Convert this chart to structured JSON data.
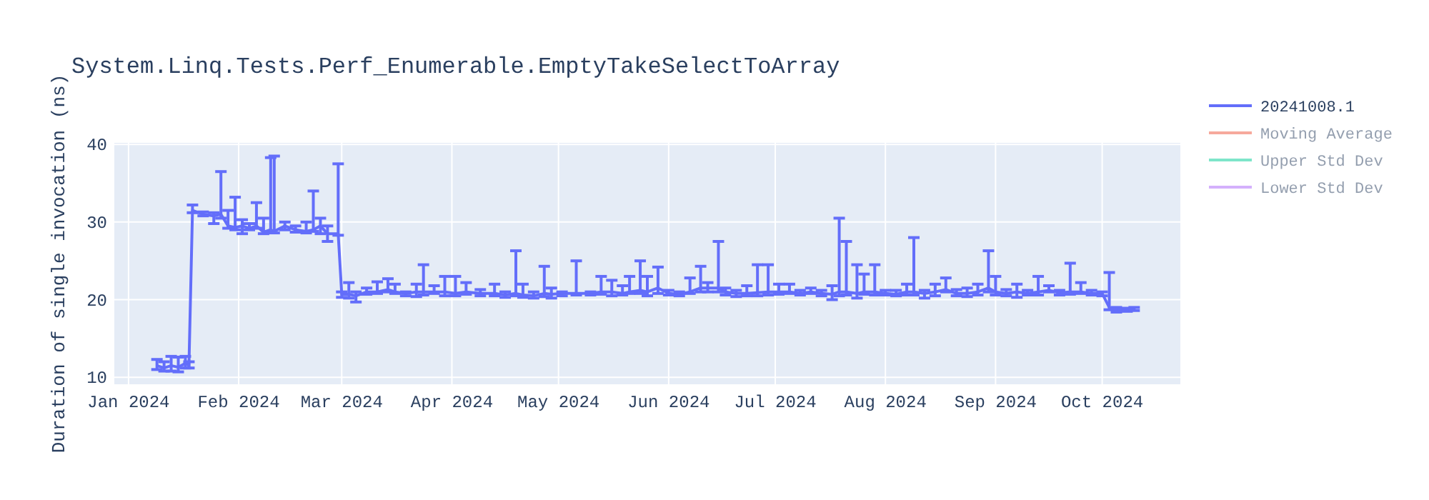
{
  "chart_data": {
    "type": "line",
    "title": "System.Linq.Tests.Perf_Enumerable.EmptyTakeSelectToArray",
    "ylabel": "Duration of single invocation (ns)",
    "x": [
      "2024-01-09",
      "2024-01-11",
      "2024-01-13",
      "2024-01-15",
      "2024-01-17",
      "2024-01-18",
      "2024-01-19",
      "2024-01-22",
      "2024-01-25",
      "2024-01-27",
      "2024-01-29",
      "2024-01-31",
      "2024-02-02",
      "2024-02-04",
      "2024-02-06",
      "2024-02-08",
      "2024-02-10",
      "2024-02-11",
      "2024-02-14",
      "2024-02-17",
      "2024-02-20",
      "2024-02-22",
      "2024-02-24",
      "2024-02-26",
      "2024-02-29",
      "2024-03-01",
      "2024-03-03",
      "2024-03-05",
      "2024-03-08",
      "2024-03-11",
      "2024-03-14",
      "2024-03-16",
      "2024-03-19",
      "2024-03-22",
      "2024-03-24",
      "2024-03-27",
      "2024-03-30",
      "2024-04-02",
      "2024-04-05",
      "2024-04-09",
      "2024-04-13",
      "2024-04-16",
      "2024-04-19",
      "2024-04-21",
      "2024-04-24",
      "2024-04-27",
      "2024-04-29",
      "2024-05-02",
      "2024-05-06",
      "2024-05-10",
      "2024-05-13",
      "2024-05-16",
      "2024-05-19",
      "2024-05-21",
      "2024-05-24",
      "2024-05-26",
      "2024-05-29",
      "2024-06-01",
      "2024-06-04",
      "2024-06-07",
      "2024-06-10",
      "2024-06-12",
      "2024-06-15",
      "2024-06-17",
      "2024-06-20",
      "2024-06-23",
      "2024-06-26",
      "2024-06-29",
      "2024-07-02",
      "2024-07-05",
      "2024-07-08",
      "2024-07-11",
      "2024-07-14",
      "2024-07-17",
      "2024-07-19",
      "2024-07-21",
      "2024-07-24",
      "2024-07-26",
      "2024-07-29",
      "2024-08-01",
      "2024-08-04",
      "2024-08-07",
      "2024-08-09",
      "2024-08-12",
      "2024-08-15",
      "2024-08-18",
      "2024-08-21",
      "2024-08-24",
      "2024-08-27",
      "2024-08-30",
      "2024-09-01",
      "2024-09-04",
      "2024-09-07",
      "2024-09-10",
      "2024-09-13",
      "2024-09-16",
      "2024-09-19",
      "2024-09-22",
      "2024-09-25",
      "2024-09-28",
      "2024-10-01",
      "2024-10-03",
      "2024-10-05",
      "2024-10-08",
      "2024-10-10"
    ],
    "series": [
      {
        "name": "20241008.1",
        "color": "#636efa",
        "values": [
          11.5,
          11.2,
          11.5,
          11.3,
          11.8,
          11.5,
          31.5,
          31,
          30.8,
          31,
          29.5,
          29.3,
          29.5,
          29.2,
          29.5,
          28.7,
          29,
          28.8,
          29.5,
          29,
          28.8,
          29,
          29.5,
          28.5,
          28.5,
          20.7,
          20.7,
          20.5,
          21,
          21,
          21.3,
          21,
          20.8,
          21,
          21,
          21,
          21,
          20.8,
          21,
          20.8,
          20.8,
          20.6,
          20.8,
          20.6,
          20.5,
          20.8,
          20.7,
          20.8,
          20.8,
          20.8,
          21,
          21,
          20.8,
          21,
          21.2,
          21,
          21.5,
          20.8,
          20.7,
          21,
          21.5,
          21.5,
          21.5,
          21,
          20.8,
          20.8,
          20.9,
          21,
          21,
          21,
          20.8,
          21,
          20.8,
          20.7,
          21,
          21,
          20.8,
          21,
          21,
          20.8,
          20.7,
          21,
          21,
          20.8,
          21,
          21.3,
          20.8,
          20.8,
          21,
          21.5,
          21,
          20.8,
          21,
          20.8,
          21,
          21.2,
          20.9,
          21,
          21,
          20.8,
          20.8,
          19,
          18.7,
          18.7,
          18.8
        ],
        "errors": [
          [
            11,
            12.3
          ],
          [
            10.8,
            12
          ],
          [
            10.8,
            12.7
          ],
          [
            10.7,
            12.6
          ],
          [
            11.2,
            12.7
          ],
          [
            11.2,
            12
          ],
          [
            31.2,
            32.2
          ],
          [
            30.8,
            31.3
          ],
          [
            29.8,
            31.2
          ],
          [
            30.5,
            36.5
          ],
          [
            29.2,
            31.5
          ],
          [
            29,
            33.2
          ],
          [
            28.5,
            30.3
          ],
          [
            29,
            29.8
          ],
          [
            29.2,
            32.5
          ],
          [
            28.5,
            30.5
          ],
          [
            28.7,
            38.3
          ],
          [
            28.6,
            38.5
          ],
          [
            29,
            30
          ],
          [
            28.7,
            29.5
          ],
          [
            28.6,
            30
          ],
          [
            28.8,
            34
          ],
          [
            28.5,
            30.5
          ],
          [
            27.5,
            29.5
          ],
          [
            28.3,
            37.5
          ],
          [
            20.3,
            21
          ],
          [
            20.2,
            22.2
          ],
          [
            19.7,
            21
          ],
          [
            20.7,
            21.5
          ],
          [
            20.8,
            22.3
          ],
          [
            21,
            22.7
          ],
          [
            20.8,
            22
          ],
          [
            20.5,
            21
          ],
          [
            20.4,
            22
          ],
          [
            20.6,
            24.5
          ],
          [
            20.8,
            21.8
          ],
          [
            20.5,
            23
          ],
          [
            20.5,
            23
          ],
          [
            20.7,
            22.2
          ],
          [
            20.5,
            21.3
          ],
          [
            20.5,
            22
          ],
          [
            20.3,
            21
          ],
          [
            20.5,
            26.3
          ],
          [
            20.3,
            22
          ],
          [
            20.2,
            21
          ],
          [
            20.4,
            24.3
          ],
          [
            20.2,
            21.5
          ],
          [
            20.5,
            21
          ],
          [
            20.6,
            25
          ],
          [
            20.6,
            21
          ],
          [
            20.7,
            23
          ],
          [
            20.5,
            22.5
          ],
          [
            20.6,
            21.8
          ],
          [
            20.8,
            23
          ],
          [
            20.8,
            25
          ],
          [
            20.5,
            23
          ],
          [
            20.8,
            24.2
          ],
          [
            20.6,
            21.2
          ],
          [
            20.5,
            21
          ],
          [
            20.8,
            22.8
          ],
          [
            21,
            24.3
          ],
          [
            21,
            22.2
          ],
          [
            21,
            27.5
          ],
          [
            20.6,
            21.5
          ],
          [
            20.4,
            21.2
          ],
          [
            20.5,
            21.8
          ],
          [
            20.5,
            24.5
          ],
          [
            20.6,
            24.5
          ],
          [
            20.7,
            22
          ],
          [
            20.8,
            22
          ],
          [
            20.6,
            21.2
          ],
          [
            20.8,
            21.5
          ],
          [
            20.5,
            21.2
          ],
          [
            20,
            21.8
          ],
          [
            20.5,
            30.5
          ],
          [
            20.6,
            27.5
          ],
          [
            20.2,
            24.5
          ],
          [
            20.7,
            23.3
          ],
          [
            20.6,
            24.5
          ],
          [
            20.6,
            21.2
          ],
          [
            20.5,
            21.2
          ],
          [
            20.6,
            22
          ],
          [
            20.6,
            28
          ],
          [
            20.2,
            21.2
          ],
          [
            20.5,
            22
          ],
          [
            21,
            22.8
          ],
          [
            20.5,
            21.3
          ],
          [
            20.4,
            21.5
          ],
          [
            20.6,
            22
          ],
          [
            21,
            26.3
          ],
          [
            20.6,
            23
          ],
          [
            20.5,
            21.3
          ],
          [
            20.3,
            22
          ],
          [
            20.6,
            21.2
          ],
          [
            20.6,
            23
          ],
          [
            21,
            21.8
          ],
          [
            20.6,
            21.2
          ],
          [
            20.7,
            24.7
          ],
          [
            20.8,
            22.2
          ],
          [
            20.6,
            21.2
          ],
          [
            20.5,
            21
          ],
          [
            18.7,
            23.5
          ],
          [
            18.4,
            19
          ],
          [
            18.5,
            18.9
          ],
          [
            18.6,
            19
          ]
        ]
      },
      {
        "name": "Moving Average",
        "color": "#ef553b",
        "values": [
          null,
          null,
          null,
          null,
          null,
          null,
          null,
          null,
          null,
          null,
          null,
          null,
          null,
          null,
          null,
          null,
          null,
          null,
          null,
          null,
          null,
          null,
          null,
          null,
          null,
          null,
          null,
          null,
          null,
          null,
          null,
          null,
          null,
          null,
          null,
          null,
          null,
          null,
          null,
          null,
          null,
          null,
          null,
          null,
          null,
          null,
          null,
          null,
          null,
          null,
          null,
          null,
          null,
          null,
          null,
          null,
          null,
          null,
          null,
          null,
          null,
          null,
          null,
          null,
          null,
          null,
          null,
          null,
          null,
          null,
          null,
          null,
          null,
          null,
          null,
          null,
          null,
          null,
          null,
          null,
          null,
          null,
          null,
          null,
          null,
          null,
          null,
          null,
          null,
          null,
          null,
          null,
          null,
          null,
          null,
          null,
          null,
          null,
          null,
          null,
          null,
          null,
          null,
          null,
          null
        ]
      },
      {
        "name": "Upper Std Dev",
        "color": "#00cc96",
        "values": [
          null,
          null,
          null,
          null,
          null,
          null,
          null,
          null,
          null,
          null,
          null,
          null,
          null,
          null,
          null,
          null,
          null,
          null,
          null,
          null,
          null,
          null,
          null,
          null,
          null,
          null,
          null,
          null,
          null,
          null,
          null,
          null,
          null,
          null,
          null,
          null,
          null,
          null,
          null,
          null,
          null,
          null,
          null,
          null,
          null,
          null,
          null,
          null,
          null,
          null,
          null,
          null,
          null,
          null,
          null,
          null,
          null,
          null,
          null,
          null,
          null,
          null,
          null,
          null,
          null,
          null,
          null,
          null,
          null,
          null,
          null,
          null,
          null,
          null,
          null,
          null,
          null,
          null,
          null,
          null,
          null,
          null,
          null,
          null,
          null,
          null,
          null,
          null,
          null,
          null,
          null,
          null,
          null,
          null,
          null,
          null,
          null,
          null,
          null,
          null,
          null,
          null,
          null,
          null,
          null
        ]
      },
      {
        "name": "Lower Std Dev",
        "color": "#ab63fa",
        "values": [
          null,
          null,
          null,
          null,
          null,
          null,
          null,
          null,
          null,
          null,
          null,
          null,
          null,
          null,
          null,
          null,
          null,
          null,
          null,
          null,
          null,
          null,
          null,
          null,
          null,
          null,
          null,
          null,
          null,
          null,
          null,
          null,
          null,
          null,
          null,
          null,
          null,
          null,
          null,
          null,
          null,
          null,
          null,
          null,
          null,
          null,
          null,
          null,
          null,
          null,
          null,
          null,
          null,
          null,
          null,
          null,
          null,
          null,
          null,
          null,
          null,
          null,
          null,
          null,
          null,
          null,
          null,
          null,
          null,
          null,
          null,
          null,
          null,
          null,
          null,
          null,
          null,
          null,
          null,
          null,
          null,
          null,
          null,
          null,
          null,
          null,
          null,
          null,
          null,
          null,
          null,
          null,
          null,
          null,
          null,
          null,
          null,
          null,
          null,
          null,
          null,
          null,
          null,
          null,
          null
        ]
      }
    ],
    "xlim": [
      "2023-12-28",
      "2024-10-23"
    ],
    "xticks": [
      {
        "value": "2024-01-01",
        "label": "Jan 2024"
      },
      {
        "value": "2024-02-01",
        "label": "Feb 2024"
      },
      {
        "value": "2024-03-01",
        "label": "Mar 2024"
      },
      {
        "value": "2024-04-01",
        "label": "Apr 2024"
      },
      {
        "value": "2024-05-01",
        "label": "May 2024"
      },
      {
        "value": "2024-06-01",
        "label": "Jun 2024"
      },
      {
        "value": "2024-07-01",
        "label": "Jul 2024"
      },
      {
        "value": "2024-08-01",
        "label": "Aug 2024"
      },
      {
        "value": "2024-09-01",
        "label": "Sep 2024"
      },
      {
        "value": "2024-10-01",
        "label": "Oct 2024"
      }
    ],
    "ylim": [
      9.1,
      40.2
    ],
    "yticks": [
      10,
      20,
      30,
      40
    ],
    "grid": true,
    "legend": "top right"
  }
}
